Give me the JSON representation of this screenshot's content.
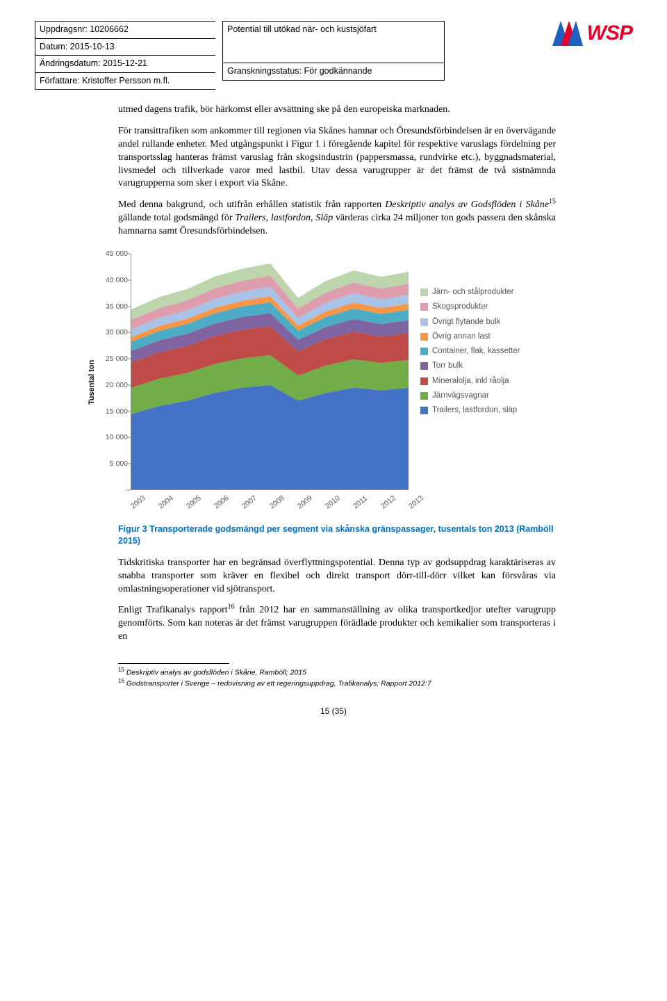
{
  "header": {
    "uppdrag_label": "Uppdragsnr:",
    "uppdrag_nr": "10206662",
    "datum_label": "Datum:",
    "datum": "2015-10-13",
    "andring_label": "Ändringsdatum:",
    "andring": "2015-12-21",
    "forfattare_label": "Författare:",
    "forfattare": "Kristoffer Persson m.fl.",
    "title": "Potential till utökad när- och kustsjöfart",
    "gransk_label": "Granskningsstatus:",
    "gransk": "För godkännande",
    "logo_text": "WSP"
  },
  "paras": {
    "p1": "utmed dagens trafik, bör härkomst eller avsättning ske på den europeiska marknaden.",
    "p2a": "För transittrafiken som ankommer till regionen via Skånes hamnar och Öresundsförbindelsen är en övervägande andel rullande enheter. Med utgångspunkt i Figur 1 i föregående kapitel för respektive varuslags fördelning per transportsslag hanteras främst varuslag från skogsindustrin (pappersmassa, rundvirke etc.), byggnadsmaterial, livsmedel och tillverkade varor med lastbil. Utav dessa varugrupper är det främst de två sistnämnda varugrupperna som sker i export via Skåne.",
    "p3a": "Med denna bakgrund, och utifrån erhållen statistik från rapporten ",
    "p3i": "Deskriptiv analys av Godsflöden i Skåne",
    "p3sup": "15",
    "p3b": " gällande total godsmängd för ",
    "p3i2": "Trailers, lastfordon, Släp",
    "p3c": " värderas cirka 24 miljoner ton gods passera den skånska hamnarna samt Öresundsförbindelsen.",
    "p4": "Tidskritiska transporter har en begränsad överflyttningspotential. Denna typ av godsuppdrag karaktäriseras av snabba transporter som kräver en flexibel och direkt transport dörr-till-dörr vilket kan försvåras via omlastningsoperationer vid sjötransport.",
    "p5a": "Enligt Trafikanalys rapport",
    "p5sup": "16",
    "p5b": " från 2012 har en sammanställning av olika transportkedjor utefter varugrupp genomförts. Som kan noteras är det främst varugruppen förädlade produkter och kemikalier som transporteras i en"
  },
  "caption": "Figur 3 Transporterade godsmängd per segment via skånska gränspassager, tusentals ton 2013 (Ramböll 2015)",
  "chart": {
    "ylabel": "Tusental ton",
    "ymin": 0,
    "ymax": 45000,
    "yticks": [
      5000,
      10000,
      15000,
      20000,
      25000,
      30000,
      35000,
      40000,
      45000
    ],
    "ytick_labels": [
      "5 000",
      "10 000",
      "15 000",
      "20 000",
      "25 000",
      "30 000",
      "35 000",
      "40 000",
      "45 000"
    ],
    "ytick0": "-",
    "xlabels": [
      "2003",
      "2004",
      "2005",
      "2006",
      "2007",
      "2008",
      "2009",
      "2010",
      "2011",
      "2012",
      "2013"
    ],
    "plot_bg": "#ffffff",
    "axis_color": "#888888",
    "series": [
      {
        "name": "Trailers, lastfordon, släp",
        "color": "#4473c5",
        "vals": [
          14500,
          16000,
          17000,
          18500,
          19500,
          20000,
          17000,
          18500,
          19500,
          19000,
          19500
        ]
      },
      {
        "name": "Järnvägsvagnar",
        "color": "#72ad48",
        "vals": [
          5000,
          5200,
          5300,
          5500,
          5600,
          5700,
          4800,
          5200,
          5400,
          5200,
          5300
        ]
      },
      {
        "name": "Mineralolja, inkl råolja",
        "color": "#be4b48",
        "vals": [
          4800,
          5000,
          5100,
          5300,
          5400,
          5500,
          4600,
          5000,
          5200,
          5000,
          5100
        ]
      },
      {
        "name": "Torr bulk",
        "color": "#8064a2",
        "vals": [
          2200,
          2300,
          2350,
          2400,
          2450,
          2500,
          2200,
          2350,
          2450,
          2400,
          2450
        ]
      },
      {
        "name": "Container, flak, kassetter",
        "color": "#4cacc6",
        "vals": [
          1700,
          1800,
          1850,
          1950,
          2000,
          2050,
          1750,
          1900,
          2000,
          1950,
          2000
        ]
      },
      {
        "name": "Övrig annan last",
        "color": "#f79646",
        "vals": [
          900,
          950,
          1000,
          1050,
          1100,
          1150,
          950,
          1050,
          1150,
          1100,
          1150
        ]
      },
      {
        "name": "Övrigt flytande bulk",
        "color": "#a9c3e7",
        "vals": [
          1500,
          1550,
          1600,
          1700,
          1750,
          1800,
          1500,
          1650,
          1750,
          1700,
          1750
        ]
      },
      {
        "name": "Skogsprodukter",
        "color": "#de9dac",
        "vals": [
          1800,
          1850,
          1900,
          2000,
          2050,
          2100,
          1800,
          1950,
          2050,
          2000,
          2050
        ]
      },
      {
        "name": "Järn- och stålprodukter",
        "color": "#bcd5ac",
        "vals": [
          2000,
          2100,
          2150,
          2250,
          2300,
          2350,
          2000,
          2200,
          2300,
          2250,
          2300
        ]
      }
    ],
    "legend_order": [
      8,
      7,
      6,
      5,
      4,
      3,
      2,
      1,
      0
    ]
  },
  "footnotes": {
    "f15n": "15",
    "f15": " Deskriptiv analys av godsflöden i Skåne, Ramböll; 2015",
    "f16n": "16",
    "f16": " Godstransporter i Sverige – redovisning av ett regeringsuppdrag, Trafikanalys; Rapport 2012:7"
  },
  "pagenum": "15 (35)"
}
